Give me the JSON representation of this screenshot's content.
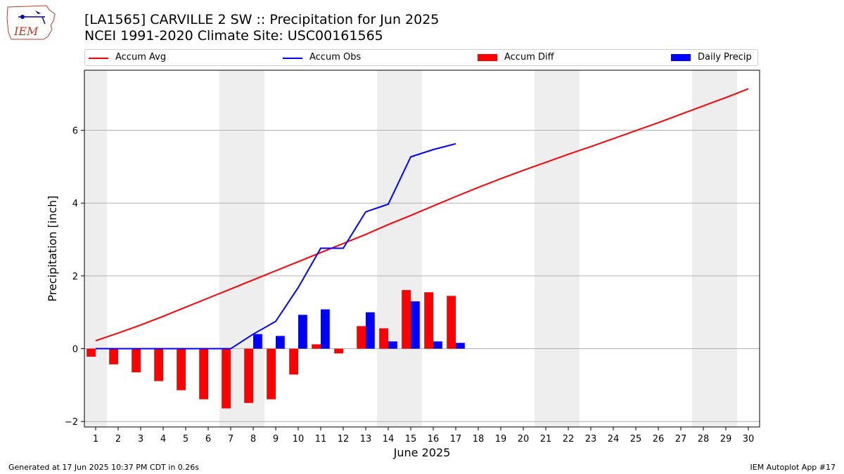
{
  "header": {
    "logo_text": "IEM",
    "title_line1": "[LA1565] CARVILLE 2 SW :: Precipitation for Jun 2025",
    "title_line2": "NCEI 1991-2020 Climate Site: USC00161565"
  },
  "legend": {
    "accum_avg": "Accum Avg",
    "accum_obs": "Accum Obs",
    "accum_diff": "Accum Diff",
    "daily_precip": "Daily Precip"
  },
  "footer": {
    "left": "Generated at 17 Jun 2025 10:37 PM CDT in 0.26s",
    "right": "IEM Autoplot App #17"
  },
  "colors": {
    "avg": "#ff0000",
    "obs": "#0000ff",
    "diff": "#ff0000",
    "daily": "#0000ff",
    "weekend_shade": "#eeeeee",
    "grid": "#b0b0b0"
  },
  "chart_data": {
    "type": "bar",
    "xlabel": "June 2025",
    "ylabel": "Precipitation [inch]",
    "xlim": [
      0.5,
      30.5
    ],
    "ylim": [
      -2.15,
      7.65
    ],
    "yticks": [
      -2,
      0,
      2,
      4,
      6
    ],
    "x": [
      1,
      2,
      3,
      4,
      5,
      6,
      7,
      8,
      9,
      10,
      11,
      12,
      13,
      14,
      15,
      16,
      17,
      18,
      19,
      20,
      21,
      22,
      23,
      24,
      25,
      26,
      27,
      28,
      29,
      30
    ],
    "weekend_days": [
      1,
      7,
      8,
      14,
      15,
      21,
      22,
      28,
      29
    ],
    "grid": "y",
    "legend_position": "top",
    "series": [
      {
        "name": "Accum Avg",
        "type": "line",
        "x": [
          1,
          2,
          3,
          4,
          5,
          6,
          7,
          8,
          9,
          10,
          11,
          12,
          13,
          14,
          15,
          16,
          17,
          18,
          19,
          20,
          21,
          22,
          23,
          24,
          25,
          26,
          27,
          28,
          29,
          30
        ],
        "values": [
          0.22,
          0.43,
          0.65,
          0.89,
          1.14,
          1.39,
          1.64,
          1.89,
          2.14,
          2.39,
          2.64,
          2.89,
          3.14,
          3.41,
          3.66,
          3.92,
          4.18,
          4.43,
          4.67,
          4.9,
          5.12,
          5.34,
          5.55,
          5.77,
          5.99,
          6.21,
          6.44,
          6.67,
          6.9,
          7.14
        ]
      },
      {
        "name": "Accum Obs",
        "type": "line",
        "x": [
          1,
          2,
          3,
          4,
          5,
          6,
          7,
          8,
          9,
          10,
          11,
          12,
          13,
          14,
          15,
          16,
          17
        ],
        "values": [
          0,
          0,
          0,
          0,
          0,
          0,
          0,
          0.4,
          0.75,
          1.68,
          2.76,
          2.76,
          3.76,
          3.97,
          5.27,
          5.47,
          5.63
        ]
      },
      {
        "name": "Accum Diff",
        "type": "bar",
        "x": [
          1,
          2,
          3,
          4,
          5,
          6,
          7,
          8,
          9,
          10,
          11,
          12,
          13,
          14,
          15,
          16,
          17
        ],
        "values": [
          -0.22,
          -0.43,
          -0.65,
          -0.89,
          -1.14,
          -1.39,
          -1.64,
          -1.49,
          -1.39,
          -0.71,
          0.12,
          -0.13,
          0.62,
          0.56,
          1.61,
          1.55,
          1.45
        ]
      },
      {
        "name": "Daily Precip",
        "type": "bar",
        "x": [
          1,
          2,
          3,
          4,
          5,
          6,
          7,
          8,
          9,
          10,
          11,
          12,
          13,
          14,
          15,
          16,
          17
        ],
        "values": [
          0,
          0,
          0,
          0,
          0,
          0,
          0,
          0.4,
          0.35,
          0.93,
          1.08,
          0,
          1.0,
          0.2,
          1.3,
          0.2,
          0.16
        ]
      }
    ]
  }
}
